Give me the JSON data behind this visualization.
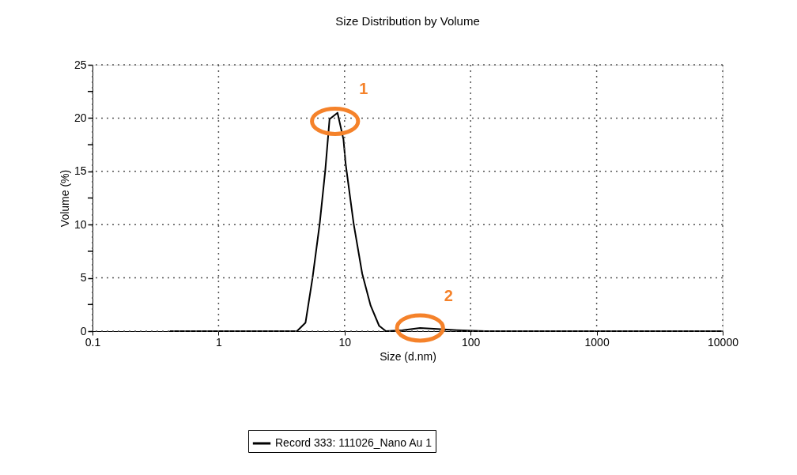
{
  "chart_data": {
    "type": "line",
    "title": "Size Distribution by Volume",
    "xlabel": "Size (d.nm)",
    "ylabel": "Volume (%)",
    "series": [
      {
        "name": "Record 333: 111026_Nano Au 1",
        "color": "#000000",
        "x": [
          0.41,
          4.19,
          4.9,
          5.57,
          6.35,
          7.03,
          7.6,
          8.79,
          9.8,
          10.2,
          11.8,
          13.8,
          16.1,
          18.8,
          21.3,
          29.1,
          39.7,
          54.4,
          77.7,
          131,
          10000
        ],
        "values": [
          0,
          0,
          0.8,
          5,
          10.1,
          15.1,
          19.9,
          20.5,
          18,
          15.7,
          10.1,
          5.4,
          2.4,
          0.5,
          0,
          0.1,
          0.3,
          0.2,
          0.1,
          0,
          0
        ]
      }
    ],
    "annotations": [
      {
        "text": "1",
        "x": 8.4,
        "y": 19.7
      },
      {
        "text": "2",
        "x": 39.7,
        "y": 0.3
      }
    ],
    "log": "x",
    "xlim": [
      0.1,
      10000
    ],
    "xticks": [
      0.1,
      1,
      10,
      100,
      1000,
      10000
    ],
    "ylim": [
      0,
      25
    ],
    "yticks": [
      0,
      {
        "value": 2.5,
        "label": null
      },
      5,
      {
        "value": 7.5,
        "label": null
      },
      10,
      {
        "value": 12.5,
        "label": null
      },
      15,
      {
        "value": 17.5,
        "label": null
      },
      20,
      {
        "value": 22.5,
        "label": null
      },
      25
    ],
    "grid": true,
    "legend": "bottom",
    "line_style": "solid",
    "marker": "none"
  }
}
